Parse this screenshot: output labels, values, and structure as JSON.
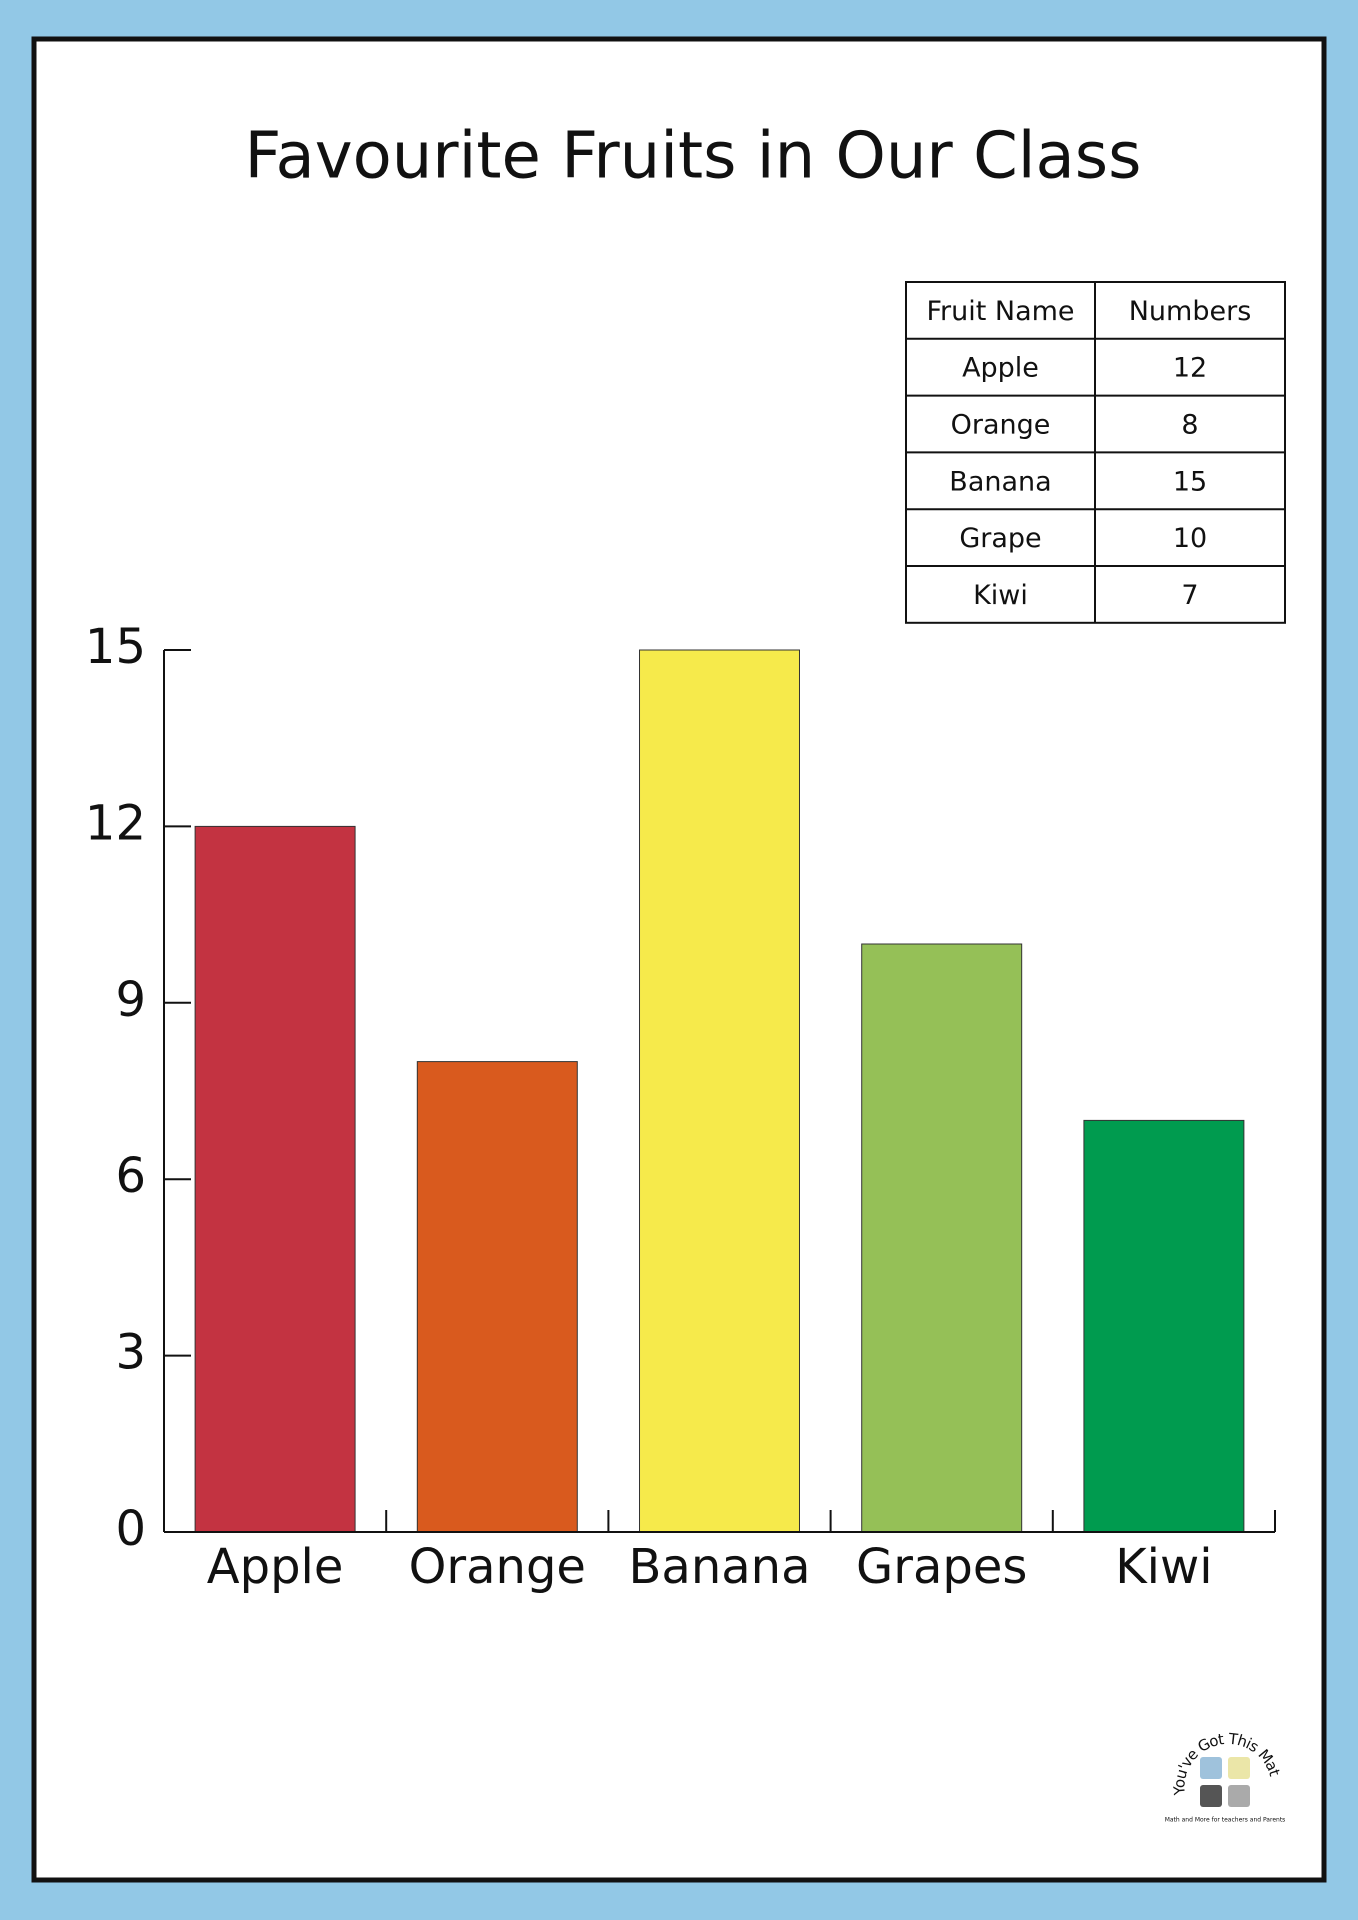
{
  "chart_data": {
    "type": "bar",
    "title": "Favourite Fruits in Our Class",
    "categories": [
      "Apple",
      "Orange",
      "Banana",
      "Grapes",
      "Kiwi"
    ],
    "values": [
      12,
      8,
      15,
      10,
      7
    ],
    "colors": [
      "#c33341",
      "#d95a1e",
      "#f6ea4b",
      "#95c057",
      "#009b4f"
    ],
    "ylim": [
      0,
      15
    ],
    "yticks": [
      0,
      3,
      6,
      9,
      12,
      15
    ],
    "grid": false
  },
  "table": {
    "header": [
      "Fruit Name",
      "Numbers"
    ],
    "rows": [
      [
        "Apple",
        12
      ],
      [
        "Orange",
        8
      ],
      [
        "Banana",
        15
      ],
      [
        "Grape",
        10
      ],
      [
        "Kiwi",
        7
      ]
    ]
  },
  "logo": {
    "name": "You've Got This Math",
    "tagline": "Math and More for teachers and Parents"
  }
}
